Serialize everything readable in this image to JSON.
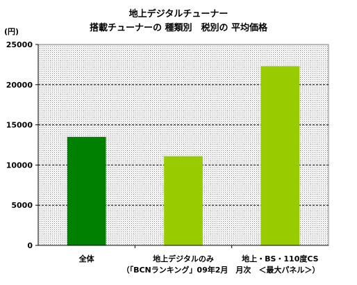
{
  "chart_data": {
    "type": "bar",
    "title_line1": "地上デジタルチューナー",
    "title_line2": "搭載チューナーの 種類別　税別の 平均価格",
    "unit_label": "(円)",
    "categories": [
      "全体",
      "地上デジタルのみ",
      "地上・BS・110度CS"
    ],
    "values": [
      13500,
      11100,
      22300
    ],
    "colors": [
      "#008000",
      "#99cc00",
      "#99cc00"
    ],
    "ylim": [
      0,
      25000
    ],
    "yticks": [
      0,
      5000,
      10000,
      15000,
      20000,
      25000
    ],
    "grid": true,
    "source_note": "（「BCNランキング」09年2月　月次　＜最大パネル＞）"
  }
}
